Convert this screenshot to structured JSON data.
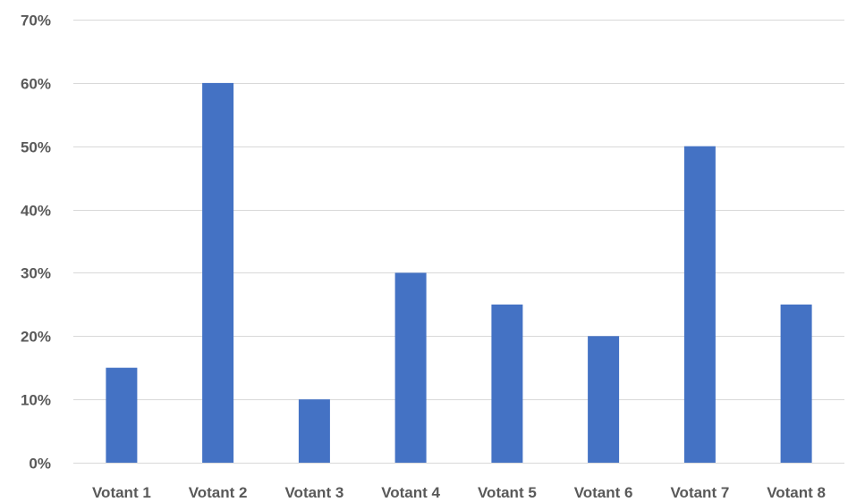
{
  "chart_data": {
    "type": "bar",
    "title": "",
    "xlabel": "",
    "ylabel": "",
    "categories": [
      "Votant 1",
      "Votant 2",
      "Votant 3",
      "Votant 4",
      "Votant 5",
      "Votant 6",
      "Votant 7",
      "Votant 8"
    ],
    "values": [
      0.15,
      0.6,
      0.1,
      0.3,
      0.25,
      0.2,
      0.5,
      0.25
    ],
    "ylim": [
      0,
      0.7
    ],
    "yticks": [
      0,
      0.1,
      0.2,
      0.3,
      0.4,
      0.5,
      0.6,
      0.7
    ],
    "ytick_labels": [
      "0%",
      "10%",
      "20%",
      "30%",
      "40%",
      "50%",
      "60%",
      "70%"
    ],
    "grid": true,
    "legend": "none",
    "bar_color": "#4472c4"
  }
}
